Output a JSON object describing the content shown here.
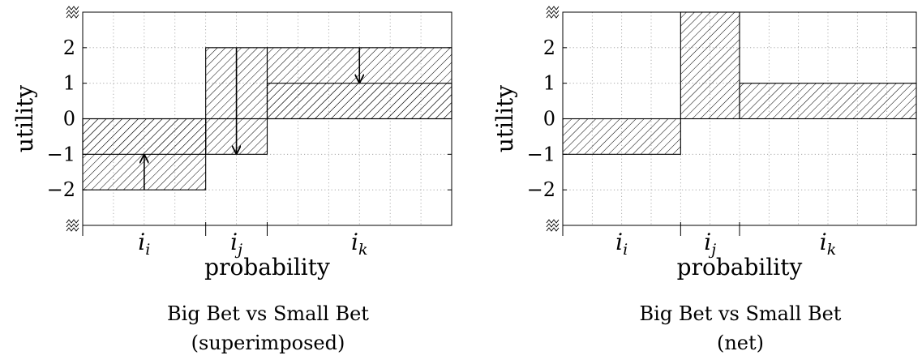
{
  "chart_data": [
    {
      "type": "bar",
      "title": "Big Bet vs Small Bet",
      "subtitle": "(superimposed)",
      "xlabel": "probability",
      "ylabel": "utility",
      "ylim": [
        -3,
        3
      ],
      "grid": true,
      "yticks": [
        "−2",
        "−1",
        "0",
        "1",
        "2"
      ],
      "axis_break_marks": [
        "top",
        "bottom"
      ],
      "categories": [
        "i_i",
        "i_j",
        "i_k"
      ],
      "category_labels": [
        {
          "base": "i",
          "sub": "i"
        },
        {
          "base": "i",
          "sub": "j"
        },
        {
          "base": "i",
          "sub": "k"
        }
      ],
      "category_widths": [
        2,
        1,
        3
      ],
      "series": [
        {
          "values": [
            -2,
            2,
            2
          ]
        },
        {
          "values": [
            -1,
            -1,
            1
          ]
        }
      ],
      "arrows": [
        {
          "category": "i_i",
          "from": -2,
          "to": -1
        },
        {
          "category": "i_j",
          "from": 2,
          "to": -1
        },
        {
          "category": "i_k",
          "from": 2,
          "to": 1
        }
      ],
      "fill": "diagonal-hatch"
    },
    {
      "type": "bar",
      "title": "Big Bet vs Small Bet",
      "subtitle": "(net)",
      "xlabel": "probability",
      "ylabel": "utility",
      "ylim": [
        -3,
        3
      ],
      "grid": true,
      "yticks": [
        "−2",
        "−1",
        "0",
        "1",
        "2"
      ],
      "axis_break_marks": [
        "top",
        "bottom"
      ],
      "categories": [
        "i_i",
        "i_j",
        "i_k"
      ],
      "category_labels": [
        {
          "base": "i",
          "sub": "i"
        },
        {
          "base": "i",
          "sub": "j"
        },
        {
          "base": "i",
          "sub": "k"
        }
      ],
      "category_widths": [
        2,
        1,
        3
      ],
      "series": [
        {
          "values": [
            -1,
            3,
            1
          ]
        }
      ],
      "fill": "diagonal-hatch"
    }
  ]
}
